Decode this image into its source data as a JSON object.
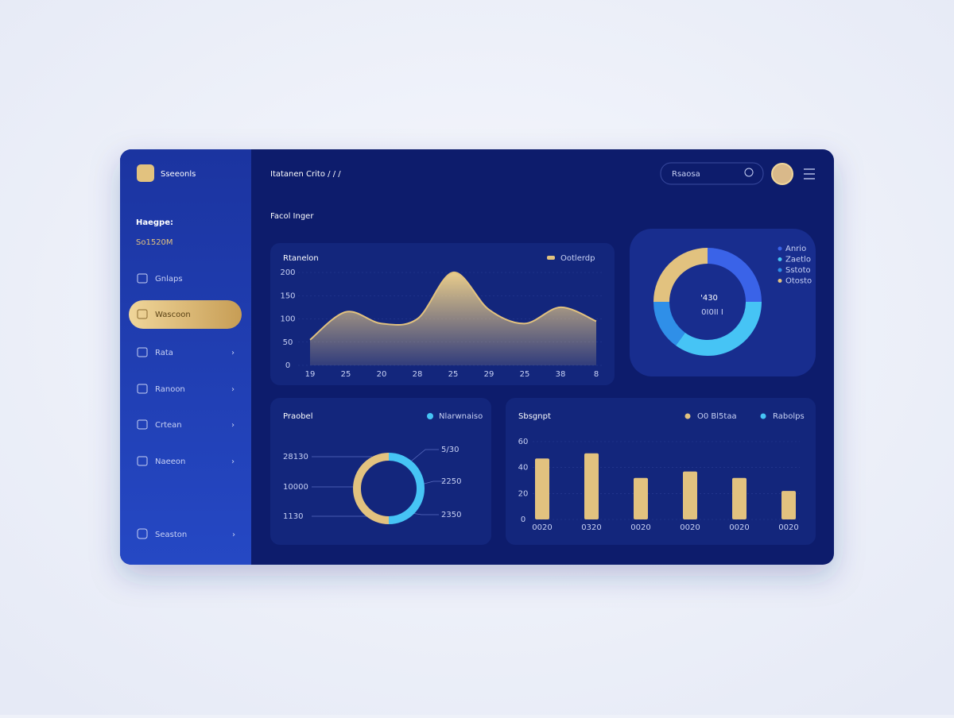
{
  "sidebar": {
    "brand": "Sseeonls",
    "balance_label": "Haegpe:",
    "balance": "So1520M",
    "menu": [
      "Gnlaps",
      "Wascoon",
      "Rata",
      "Ranoon",
      "Crtean",
      "Naeeon"
    ],
    "footer_item": "Seaston"
  },
  "header": {
    "breadcrumb": "Itatanen Crito / / /",
    "search_placeholder": "Rsaosa"
  },
  "section_title": "Facol Inger",
  "area_chart": {
    "type": "area",
    "title": "Rtanelon",
    "legend": "Ootlerdp",
    "color": "#e2c27f",
    "categories": [
      "19",
      "25",
      "20",
      "28",
      "25",
      "29",
      "25",
      "38",
      "8"
    ],
    "values": [
      55,
      115,
      90,
      100,
      200,
      120,
      90,
      125,
      95
    ],
    "ylim": [
      0,
      200
    ],
    "yticks": [
      0,
      50,
      100,
      150,
      200
    ]
  },
  "donut_chart": {
    "type": "donut",
    "center_value": "'430",
    "center_label": "0I0II I",
    "categories": [
      "Anrio",
      "Zaetlo",
      "Sstoto",
      "Otosto"
    ],
    "values": [
      25,
      35,
      15,
      25
    ],
    "colors": [
      "#3a63e8",
      "#46c4f5",
      "#2f8fe8",
      "#e2c27f"
    ]
  },
  "ring_chart": {
    "type": "donut",
    "title": "Praobel",
    "legend": "Nlarwnaiso",
    "left_labels": [
      "28130",
      "10000",
      "1130"
    ],
    "right_labels": [
      "5/30",
      "2250",
      "2350"
    ],
    "values": [
      50,
      50
    ],
    "colors": [
      "#e2c27f",
      "#46c4f5"
    ]
  },
  "bar_chart": {
    "type": "bar",
    "title": "Sbsgnpt",
    "legend": [
      "O0 Bl5taa",
      "Rabolps"
    ],
    "legend_colors": [
      "#e2c27f",
      "#46c4f5"
    ],
    "categories": [
      "0020",
      "0320",
      "0020",
      "0020",
      "0020",
      "0020"
    ],
    "values": [
      47,
      51,
      32,
      37,
      32,
      22
    ],
    "color": "#e2c27f",
    "ylim": [
      0,
      60
    ],
    "yticks": [
      0,
      20,
      40,
      60
    ]
  }
}
